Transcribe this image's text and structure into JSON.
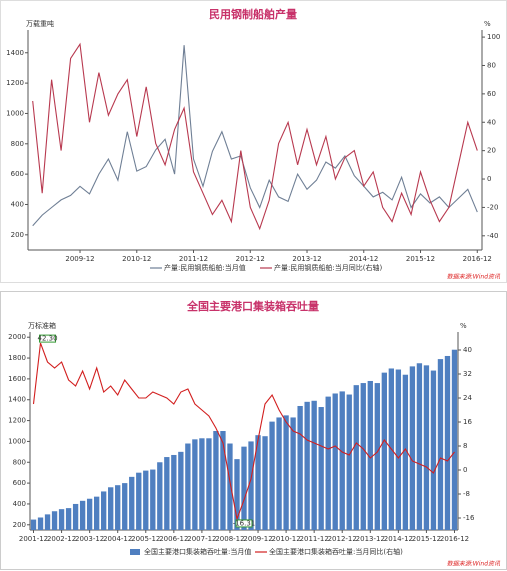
{
  "chart_data": [
    {
      "type": "line",
      "title": "民用钢制船舶产量",
      "y_unit": "万载重吨",
      "y2_unit": "%",
      "source": "数据来源:Wind资讯",
      "categories": [
        null,
        null,
        null,
        null,
        null,
        "2009-12",
        null,
        null,
        null,
        null,
        null,
        "2010-12",
        null,
        null,
        null,
        null,
        null,
        "2011-12",
        null,
        null,
        null,
        null,
        null,
        "2012-12",
        null,
        null,
        null,
        null,
        null,
        "2013-12",
        null,
        null,
        null,
        null,
        null,
        "2014-12",
        null,
        null,
        null,
        null,
        null,
        "2015-12",
        null,
        null,
        null,
        null,
        null,
        "2016-12"
      ],
      "series": [
        {
          "name": "产量:民用钢质船舶:当月值",
          "color": "#6f7f95",
          "axis": "y",
          "values": [
            260,
            330,
            380,
            430,
            460,
            520,
            470,
            600,
            700,
            560,
            880,
            620,
            650,
            760,
            830,
            600,
            1450,
            700,
            520,
            750,
            880,
            700,
            720,
            510,
            380,
            560,
            450,
            420,
            600,
            500,
            560,
            680,
            640,
            720,
            590,
            520,
            450,
            480,
            430,
            580,
            380,
            470,
            410,
            450,
            380,
            440,
            500,
            350
          ]
        },
        {
          "name": "产量:民用钢质船舶:当月同比(右轴)",
          "color": "#b8394f",
          "axis": "y2",
          "values": [
            55,
            -10,
            70,
            20,
            85,
            95,
            40,
            75,
            45,
            60,
            70,
            30,
            65,
            25,
            10,
            35,
            50,
            5,
            -10,
            -25,
            -15,
            -30,
            20,
            -20,
            -35,
            -15,
            25,
            40,
            10,
            35,
            10,
            30,
            0,
            15,
            20,
            -5,
            5,
            -20,
            -30,
            -10,
            -25,
            5,
            -15,
            -30,
            -20,
            10,
            40,
            20
          ]
        }
      ],
      "ylim": [
        100,
        1550
      ],
      "yticks": [
        200,
        400,
        600,
        800,
        1000,
        1200,
        1400
      ],
      "y2lim": [
        -50,
        105
      ],
      "y2ticks": [
        -40,
        -20,
        0,
        20,
        40,
        60,
        80,
        100
      ],
      "grid": false
    },
    {
      "type": "bar",
      "title": "全国主要港口集装箱吞吐量",
      "y_unit": "万标准箱",
      "y2_unit": "%",
      "source": "数据来源:Wind资讯",
      "categories": [
        "2001-12",
        null,
        null,
        null,
        "2002-12",
        null,
        null,
        null,
        "2003-12",
        null,
        null,
        null,
        "2004-12",
        null,
        null,
        null,
        "2005-12",
        null,
        null,
        null,
        "2006-12",
        null,
        null,
        null,
        "2007-12",
        null,
        null,
        null,
        "2008-12",
        null,
        null,
        null,
        "2009-12",
        null,
        null,
        null,
        "2010-12",
        null,
        null,
        null,
        "2011-12",
        null,
        null,
        null,
        "2012-12",
        null,
        null,
        null,
        "2013-12",
        null,
        null,
        null,
        "2014-12",
        null,
        null,
        null,
        "2015-12",
        null,
        null,
        null,
        "2016-12"
      ],
      "series": [
        {
          "name": "全国主要港口集装箱吞吐量:当月值",
          "color": "#4f7fc0",
          "axis": "y",
          "type": "bar",
          "values": [
            250,
            270,
            300,
            330,
            350,
            360,
            400,
            430,
            450,
            470,
            520,
            560,
            580,
            600,
            660,
            700,
            720,
            730,
            800,
            850,
            870,
            900,
            980,
            1020,
            1030,
            1030,
            1100,
            1100,
            980,
            830,
            950,
            1000,
            1060,
            1050,
            1190,
            1230,
            1250,
            1230,
            1340,
            1380,
            1390,
            1330,
            1430,
            1460,
            1480,
            1450,
            1540,
            1560,
            1580,
            1560,
            1660,
            1700,
            1690,
            1640,
            1720,
            1750,
            1730,
            1680,
            1790,
            1820,
            1880
          ]
        },
        {
          "name": "全国主要港口集装箱吞吐量:当月同比(右轴)",
          "color": "#d21f1f",
          "axis": "y2",
          "type": "line",
          "values": [
            22,
            42.3,
            36,
            34,
            36,
            30,
            28,
            33,
            27,
            34,
            26,
            28,
            25,
            30,
            27,
            24,
            24,
            26,
            25,
            24,
            22,
            26,
            27,
            22,
            20,
            18,
            14,
            9,
            -4,
            -16.31,
            -10,
            -3,
            10,
            22,
            25,
            20,
            16,
            13,
            12,
            10,
            9,
            8,
            7,
            8,
            6,
            5,
            9,
            7,
            4,
            6,
            10,
            7,
            4,
            7,
            3,
            2,
            1,
            -1,
            4,
            3,
            6
          ],
          "value_labels": [
            null,
            "42.30",
            null,
            null,
            null,
            null,
            null,
            null,
            null,
            null,
            null,
            null,
            null,
            null,
            null,
            null,
            null,
            null,
            null,
            null,
            null,
            null,
            null,
            null,
            null,
            null,
            null,
            null,
            null,
            "-16.31",
            null,
            null,
            null,
            null,
            null,
            null,
            null,
            null,
            null,
            null,
            null,
            null,
            null,
            null,
            null,
            null,
            null,
            null,
            null,
            null,
            null,
            null,
            null,
            null,
            null,
            null,
            null,
            null,
            null,
            null,
            null
          ]
        }
      ],
      "ylim": [
        150,
        2050
      ],
      "yticks": [
        200,
        400,
        600,
        800,
        1000,
        1200,
        1400,
        1600,
        1800,
        2000
      ],
      "y2lim": [
        -20,
        46
      ],
      "y2ticks": [
        -16,
        -8,
        0,
        8,
        16,
        24,
        32,
        40
      ],
      "grid": false
    }
  ]
}
